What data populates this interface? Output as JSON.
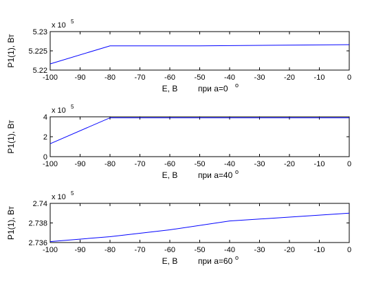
{
  "chart_data": [
    {
      "type": "line",
      "xlabel": "E, В",
      "ylabel": "P1(1), Вт",
      "annotation_prefix": "при a=0",
      "annotation_degree": "o",
      "exponent_base": "x 10",
      "exponent_power": "5",
      "xlim": [
        -100,
        0
      ],
      "ylim": [
        5.22,
        5.23
      ],
      "x_ticks": [
        -100,
        -90,
        -80,
        -70,
        -60,
        -50,
        -40,
        -30,
        -20,
        -10,
        0
      ],
      "x_tick_labels": [
        "-100",
        "-90",
        "-80",
        "-70",
        "-60",
        "-50",
        "-40",
        "-30",
        "-20",
        "-10",
        "0"
      ],
      "y_ticks": [
        5.22,
        5.225,
        5.23
      ],
      "y_tick_labels": [
        "5.22",
        "5.225",
        "5.23"
      ],
      "grid": false,
      "line_color": "#0000ff",
      "series": [
        {
          "x": [
            -100,
            -80,
            -50,
            0
          ],
          "values": [
            5.2216,
            5.2263,
            5.2263,
            5.2266
          ]
        }
      ]
    },
    {
      "type": "line",
      "xlabel": "E, В",
      "ylabel": "P1(1), Вт",
      "annotation_prefix": "при a=40",
      "annotation_degree": "o",
      "exponent_base": "x 10",
      "exponent_power": "5",
      "xlim": [
        -100,
        0
      ],
      "ylim": [
        0,
        4
      ],
      "x_ticks": [
        -100,
        -90,
        -80,
        -70,
        -60,
        -50,
        -40,
        -30,
        -20,
        -10,
        0
      ],
      "x_tick_labels": [
        "-100",
        "-90",
        "-80",
        "-70",
        "-60",
        "-50",
        "-40",
        "-30",
        "-20",
        "-10",
        "0"
      ],
      "y_ticks": [
        0,
        2,
        4
      ],
      "y_tick_labels": [
        "0",
        "2",
        "4"
      ],
      "grid": false,
      "line_color": "#0000ff",
      "series": [
        {
          "x": [
            -100,
            -80,
            0
          ],
          "values": [
            1.3,
            3.9,
            3.9
          ]
        }
      ]
    },
    {
      "type": "line",
      "xlabel": "E, В",
      "ylabel": "P1(1), Вт",
      "annotation_prefix": "при a=60",
      "annotation_degree": "o",
      "exponent_base": "x 10",
      "exponent_power": "5",
      "xlim": [
        -100,
        0
      ],
      "ylim": [
        2.736,
        2.74
      ],
      "x_ticks": [
        -100,
        -90,
        -80,
        -70,
        -60,
        -50,
        -40,
        -30,
        -20,
        -10,
        0
      ],
      "x_tick_labels": [
        "-100",
        "-90",
        "-80",
        "-70",
        "-60",
        "-50",
        "-40",
        "-30",
        "-20",
        "-10",
        "0"
      ],
      "y_ticks": [
        2.736,
        2.738,
        2.74
      ],
      "y_tick_labels": [
        "2.736",
        "2.738",
        "2.74"
      ],
      "grid": false,
      "line_color": "#0000ff",
      "series": [
        {
          "x": [
            -100,
            -80,
            -60,
            -40,
            -20,
            0
          ],
          "values": [
            2.7361,
            2.7366,
            2.7373,
            2.7382,
            2.7386,
            2.739
          ]
        }
      ]
    }
  ]
}
